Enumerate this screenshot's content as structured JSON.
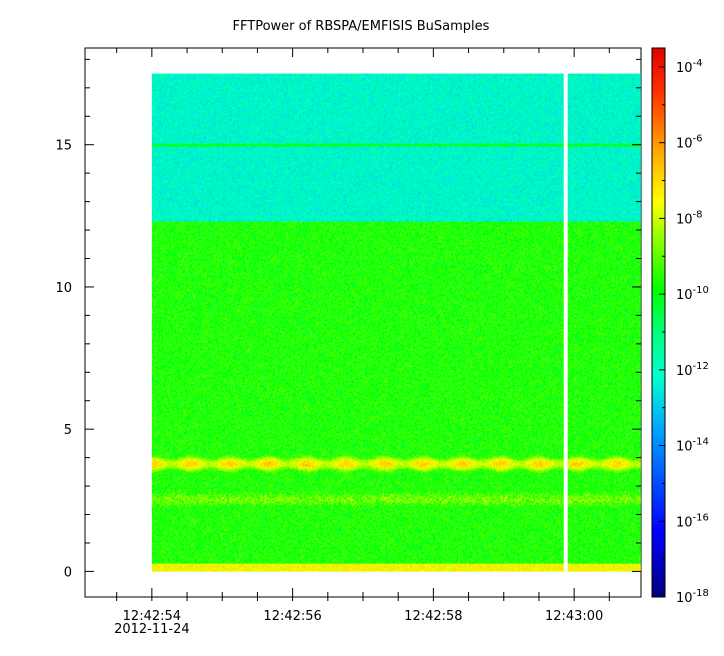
{
  "chart_data": {
    "type": "heatmap",
    "title": "FFTPower of RBSPA/EMFISIS  BuSamples",
    "xlabel": "",
    "ylabel": "",
    "x_ticks": [
      {
        "label": "12:42:54",
        "sublabel": "2012-11-24",
        "t": 0
      },
      {
        "label": "12:42:56",
        "t": 2
      },
      {
        "label": "12:42:58",
        "t": 4
      },
      {
        "label": "12:43:00",
        "t": 6
      }
    ],
    "x_range": [
      -0.95,
      6.95
    ],
    "data_x_range": [
      0,
      6.95
    ],
    "gap_t": 5.88,
    "y_ticks": [
      0,
      5,
      10,
      15
    ],
    "ylim": [
      -0.9,
      18.4
    ],
    "data_y_range": [
      0,
      17.5
    ],
    "colorbar": {
      "scale": "log",
      "range": [
        -18,
        -3.5
      ],
      "ticks": [
        {
          "base": "10",
          "exp": "-4",
          "log": -4
        },
        {
          "base": "10",
          "exp": "-6",
          "log": -6
        },
        {
          "base": "10",
          "exp": "-8",
          "log": -8
        },
        {
          "base": "10",
          "exp": "-10",
          "log": -10
        },
        {
          "base": "10",
          "exp": "-12",
          "log": -12
        },
        {
          "base": "10",
          "exp": "-14",
          "log": -14
        },
        {
          "base": "10",
          "exp": "-16",
          "log": -16
        },
        {
          "base": "10",
          "exp": "-18",
          "log": -18
        }
      ]
    },
    "features": [
      {
        "feature": "background above 12.3 (log power)",
        "value": -12.5
      },
      {
        "feature": "background 0.3-12.3 (log power)",
        "value": -10.3
      },
      {
        "feature": "narrow line at 15.0 (log power)",
        "value": -10.8
      },
      {
        "feature": "band at 3.8 (log power)",
        "value": -7.5
      },
      {
        "feature": "band near 2.5 (log power)",
        "value": -8.5
      },
      {
        "feature": "bottom edge 0-0.3 (log power)",
        "value": -8.2
      }
    ]
  }
}
